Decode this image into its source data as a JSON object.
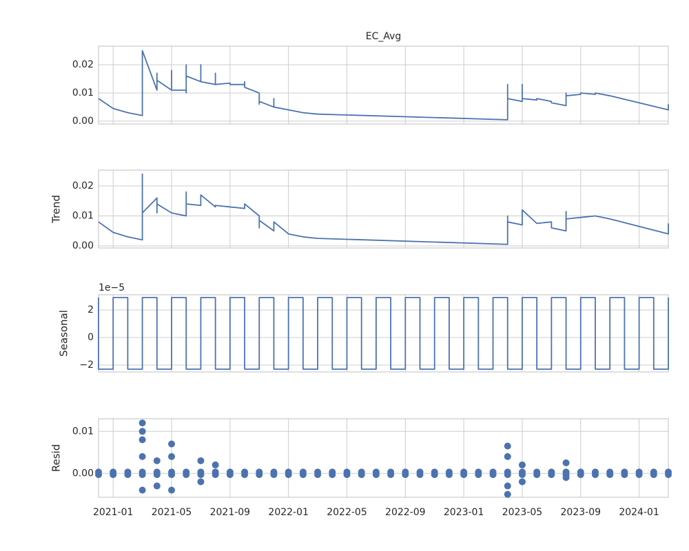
{
  "chart_data": [
    {
      "type": "line",
      "title": "EC_Avg",
      "color": "#4c72b0",
      "grid": true,
      "xlim": [
        "2020-12",
        "2024-03"
      ],
      "xticks": [
        "2021-01",
        "2021-05",
        "2021-09",
        "2022-01",
        "2022-05",
        "2022-09",
        "2023-01",
        "2023-05",
        "2023-09",
        "2024-01"
      ],
      "ylim": [
        -0.001,
        0.0266
      ],
      "yticks": [
        {
          "value": 0,
          "label": "0.00"
        },
        {
          "value": 0.01,
          "label": "0.01"
        },
        {
          "value": 0.02,
          "label": "0.02"
        }
      ],
      "x": [
        "2020-12",
        "2021-01",
        "2021-02",
        "2021-03",
        "2021-03",
        "2021-03",
        "2021-03",
        "2021-03",
        "2021-03",
        "2021-04",
        "2021-04",
        "2021-04",
        "2021-04",
        "2021-05",
        "2021-05",
        "2021-05",
        "2021-06",
        "2021-06",
        "2021-06",
        "2021-06",
        "2021-07",
        "2021-07",
        "2021-07",
        "2021-08",
        "2021-08",
        "2021-08",
        "2021-09",
        "2021-09",
        "2021-10",
        "2021-10",
        "2021-10",
        "2021-11",
        "2021-11",
        "2021-11",
        "2021-11",
        "2021-12",
        "2021-12",
        "2021-12",
        "2022-01",
        "2022-02",
        "2022-03",
        "2023-04",
        "2023-04",
        "2023-04",
        "2023-05",
        "2023-05",
        "2023-05",
        "2023-05",
        "2023-05",
        "2023-06",
        "2023-06",
        "2023-07",
        "2023-07",
        "2023-08",
        "2023-08",
        "2023-08",
        "2023-09",
        "2023-09",
        "2023-10",
        "2023-10",
        "2023-11",
        "2024-03",
        "2024-03"
      ],
      "values": [
        0.008,
        0.0045,
        0.003,
        0.002,
        0.011,
        0.008,
        0.023,
        0.009,
        0.025,
        0.011,
        0.017,
        0.011,
        0.0145,
        0.011,
        0.018,
        0.011,
        0.011,
        0.01,
        0.02,
        0.016,
        0.014,
        0.02,
        0.014,
        0.013,
        0.017,
        0.013,
        0.0135,
        0.013,
        0.013,
        0.014,
        0.012,
        0.01,
        0.006,
        0.009,
        0.007,
        0.005,
        0.008,
        0.005,
        0.004,
        0.003,
        0.0025,
        0.0005,
        0.013,
        0.008,
        0.007,
        0.012,
        0.008,
        0.013,
        0.008,
        0.0075,
        0.008,
        0.007,
        0.0065,
        0.0055,
        0.01,
        0.009,
        0.0095,
        0.01,
        0.0095,
        0.01,
        0.009,
        0.004,
        0.006
      ]
    },
    {
      "type": "line",
      "ylabel": "Trend",
      "color": "#4c72b0",
      "grid": true,
      "xlim": [
        "2020-12",
        "2024-03"
      ],
      "xticks": [
        "2021-01",
        "2021-05",
        "2021-09",
        "2022-01",
        "2022-05",
        "2022-09",
        "2023-01",
        "2023-05",
        "2023-09",
        "2024-01"
      ],
      "ylim": [
        -0.0007,
        0.0253
      ],
      "yticks": [
        {
          "value": 0,
          "label": "0.00"
        },
        {
          "value": 0.01,
          "label": "0.01"
        },
        {
          "value": 0.02,
          "label": "0.02"
        }
      ],
      "x": [
        "2020-12",
        "2021-01",
        "2021-02",
        "2021-03",
        "2021-03",
        "2021-03",
        "2021-03",
        "2021-03",
        "2021-04",
        "2021-04",
        "2021-04",
        "2021-05",
        "2021-05",
        "2021-06",
        "2021-06",
        "2021-06",
        "2021-07",
        "2021-07",
        "2021-08",
        "2021-08",
        "2021-09",
        "2021-10",
        "2021-10",
        "2021-11",
        "2021-11",
        "2021-11",
        "2021-12",
        "2021-12",
        "2022-01",
        "2022-02",
        "2022-03",
        "2023-04",
        "2023-04",
        "2023-04",
        "2023-05",
        "2023-05",
        "2023-05",
        "2023-05",
        "2023-06",
        "2023-07",
        "2023-07",
        "2023-08",
        "2023-08",
        "2023-08",
        "2023-09",
        "2023-10",
        "2023-11",
        "2024-03",
        "2024-03"
      ],
      "values": [
        0.008,
        0.0045,
        0.003,
        0.002,
        0.01,
        0.008,
        0.024,
        0.011,
        0.016,
        0.011,
        0.014,
        0.011,
        0.011,
        0.01,
        0.018,
        0.014,
        0.0135,
        0.017,
        0.013,
        0.0135,
        0.013,
        0.0125,
        0.014,
        0.01,
        0.006,
        0.0085,
        0.005,
        0.008,
        0.004,
        0.003,
        0.0025,
        0.0005,
        0.01,
        0.008,
        0.007,
        0.012,
        0.008,
        0.012,
        0.0075,
        0.008,
        0.006,
        0.005,
        0.0115,
        0.009,
        0.0095,
        0.01,
        0.009,
        0.004,
        0.0075
      ]
    },
    {
      "type": "line",
      "ylabel": "Seasonal",
      "offset_text": "1e−5",
      "color": "#4c72b0",
      "grid": true,
      "xlim": [
        "2020-12",
        "2024-03"
      ],
      "xticks": [
        "2021-01",
        "2021-05",
        "2021-09",
        "2022-01",
        "2022-05",
        "2022-09",
        "2023-01",
        "2023-05",
        "2023-09",
        "2024-01"
      ],
      "ylim": [
        -2.5e-05,
        3.1e-05
      ],
      "yticks": [
        {
          "value": -2e-05,
          "label": "−2"
        },
        0,
        {
          "value": 2e-05,
          "label": "2"
        }
      ],
      "x": [
        "2020-12",
        "2020-12",
        "2021-01",
        "2021-01",
        "2021-02",
        "2021-02",
        "2021-03",
        "2021-03",
        "2021-04",
        "2021-04",
        "2021-05",
        "2021-05",
        "2021-06",
        "2021-06",
        "2021-07",
        "2021-07",
        "2021-08",
        "2021-08",
        "2021-09",
        "2021-09",
        "2021-10",
        "2021-10",
        "2021-11",
        "2021-11",
        "2021-12",
        "2021-12",
        "2022-01",
        "2022-01",
        "2022-02",
        "2022-02",
        "2022-03",
        "2022-03",
        "2022-04",
        "2022-04",
        "2022-05",
        "2022-05",
        "2022-06",
        "2022-06",
        "2022-07",
        "2022-07",
        "2022-08",
        "2022-08",
        "2022-09",
        "2022-09",
        "2022-10",
        "2022-10",
        "2022-11",
        "2022-11",
        "2022-12",
        "2022-12",
        "2023-01",
        "2023-01",
        "2023-02",
        "2023-02",
        "2023-03",
        "2023-03",
        "2023-04",
        "2023-04",
        "2023-05",
        "2023-05",
        "2023-06",
        "2023-06",
        "2023-07",
        "2023-07",
        "2023-08",
        "2023-08",
        "2023-09",
        "2023-09",
        "2023-10",
        "2023-10",
        "2023-11",
        "2023-11",
        "2023-12",
        "2023-12",
        "2024-01",
        "2024-01",
        "2024-02",
        "2024-02",
        "2024-03",
        "2024-03"
      ],
      "values": [
        2.9e-05,
        -2.3e-05,
        -2.3e-05,
        2.9e-05,
        2.9e-05,
        -2.3e-05,
        -2.3e-05,
        2.9e-05,
        2.9e-05,
        -2.3e-05,
        -2.3e-05,
        2.9e-05,
        2.9e-05,
        -2.3e-05,
        -2.3e-05,
        2.9e-05,
        2.9e-05,
        -2.3e-05,
        -2.3e-05,
        2.9e-05,
        2.9e-05,
        -2.3e-05,
        -2.3e-05,
        2.9e-05,
        2.9e-05,
        -2.3e-05,
        -2.3e-05,
        2.9e-05,
        2.9e-05,
        -2.3e-05,
        -2.3e-05,
        2.9e-05,
        2.9e-05,
        -2.3e-05,
        -2.3e-05,
        2.9e-05,
        2.9e-05,
        -2.3e-05,
        -2.3e-05,
        2.9e-05,
        2.9e-05,
        -2.3e-05,
        -2.3e-05,
        2.9e-05,
        2.9e-05,
        -2.3e-05,
        -2.3e-05,
        2.9e-05,
        2.9e-05,
        -2.3e-05,
        -2.3e-05,
        2.9e-05,
        2.9e-05,
        -2.3e-05,
        -2.3e-05,
        2.9e-05,
        2.9e-05,
        -2.3e-05,
        -2.3e-05,
        2.9e-05,
        2.9e-05,
        -2.3e-05,
        -2.3e-05,
        2.9e-05,
        2.9e-05,
        -2.3e-05,
        -2.3e-05,
        2.9e-05,
        2.9e-05,
        -2.3e-05,
        -2.3e-05,
        2.9e-05,
        2.9e-05,
        -2.3e-05,
        -2.3e-05,
        2.9e-05,
        2.9e-05,
        -2.3e-05,
        -2.3e-05,
        2.9e-05
      ]
    },
    {
      "type": "scatter",
      "ylabel": "Resid",
      "color": "#4c72b0",
      "grid": true,
      "xlim": [
        "2020-12",
        "2024-03"
      ],
      "xticks": [
        "2021-01",
        "2021-05",
        "2021-09",
        "2022-01",
        "2022-05",
        "2022-09",
        "2023-01",
        "2023-05",
        "2023-09",
        "2024-01"
      ],
      "ylim": [
        -0.0057,
        0.013
      ],
      "yticks": [
        {
          "value": 0,
          "label": "0.00"
        },
        {
          "value": 0.01,
          "label": "0.01"
        }
      ],
      "x": [
        "2020-12",
        "2020-12",
        "2021-01",
        "2021-01",
        "2021-02",
        "2021-02",
        "2021-03",
        "2021-03",
        "2021-04",
        "2021-04",
        "2021-05",
        "2021-05",
        "2021-06",
        "2021-06",
        "2021-07",
        "2021-07",
        "2021-08",
        "2021-08",
        "2021-09",
        "2021-09",
        "2021-10",
        "2021-10",
        "2021-11",
        "2021-11",
        "2021-12",
        "2021-12",
        "2022-01",
        "2022-01",
        "2022-02",
        "2022-02",
        "2022-03",
        "2022-03",
        "2022-04",
        "2022-04",
        "2022-05",
        "2022-05",
        "2022-06",
        "2022-06",
        "2022-07",
        "2022-07",
        "2022-08",
        "2022-08",
        "2022-09",
        "2022-09",
        "2022-10",
        "2022-10",
        "2022-11",
        "2022-11",
        "2022-12",
        "2022-12",
        "2023-01",
        "2023-01",
        "2023-02",
        "2023-02",
        "2023-03",
        "2023-03",
        "2023-04",
        "2023-04",
        "2023-05",
        "2023-05",
        "2023-06",
        "2023-06",
        "2023-07",
        "2023-07",
        "2023-08",
        "2023-08",
        "2023-09",
        "2023-09",
        "2023-10",
        "2023-10",
        "2023-11",
        "2023-11",
        "2023-12",
        "2023-12",
        "2024-01",
        "2024-01",
        "2024-02",
        "2024-02",
        "2024-03",
        "2024-03",
        "2021-03",
        "2021-03",
        "2021-03",
        "2021-03",
        "2021-03",
        "2021-04",
        "2021-04",
        "2021-05",
        "2021-05",
        "2021-05",
        "2021-07",
        "2021-07",
        "2021-08",
        "2023-04",
        "2023-04",
        "2023-04",
        "2023-04",
        "2023-05",
        "2023-05",
        "2023-08",
        "2023-08"
      ],
      "values": [
        0.0003,
        -0.0003,
        0.0003,
        -0.0003,
        0.0003,
        -0.0003,
        0.0003,
        -0.0003,
        0.0003,
        -0.0003,
        0.0003,
        -0.0003,
        0.0003,
        -0.0003,
        0.0003,
        -0.0003,
        0.0003,
        -0.0003,
        0.0003,
        -0.0003,
        0.0003,
        -0.0003,
        0.0003,
        -0.0003,
        0.0003,
        -0.0003,
        0.0003,
        -0.0003,
        0.0003,
        -0.0003,
        0.0003,
        -0.0003,
        0.0003,
        -0.0003,
        0.0003,
        -0.0003,
        0.0003,
        -0.0003,
        0.0003,
        -0.0003,
        0.0003,
        -0.0003,
        0.0003,
        -0.0003,
        0.0003,
        -0.0003,
        0.0003,
        -0.0003,
        0.0003,
        -0.0003,
        0.0003,
        -0.0003,
        0.0003,
        -0.0003,
        0.0003,
        -0.0003,
        0.0003,
        -0.0003,
        0.0003,
        -0.0003,
        0.0003,
        -0.0003,
        0.0003,
        -0.0003,
        0.0003,
        -0.0003,
        0.0003,
        -0.0003,
        0.0003,
        -0.0003,
        0.0003,
        -0.0003,
        0.0003,
        -0.0003,
        0.0003,
        -0.0003,
        0.0003,
        -0.0003,
        0.0003,
        -0.0003,
        0.012,
        0.01,
        0.008,
        0.004,
        -0.004,
        0.003,
        -0.003,
        0.007,
        0.004,
        -0.004,
        0.003,
        -0.002,
        0.002,
        0.0065,
        0.004,
        -0.003,
        -0.005,
        0.002,
        -0.002,
        0.0025,
        -0.001
      ]
    }
  ]
}
